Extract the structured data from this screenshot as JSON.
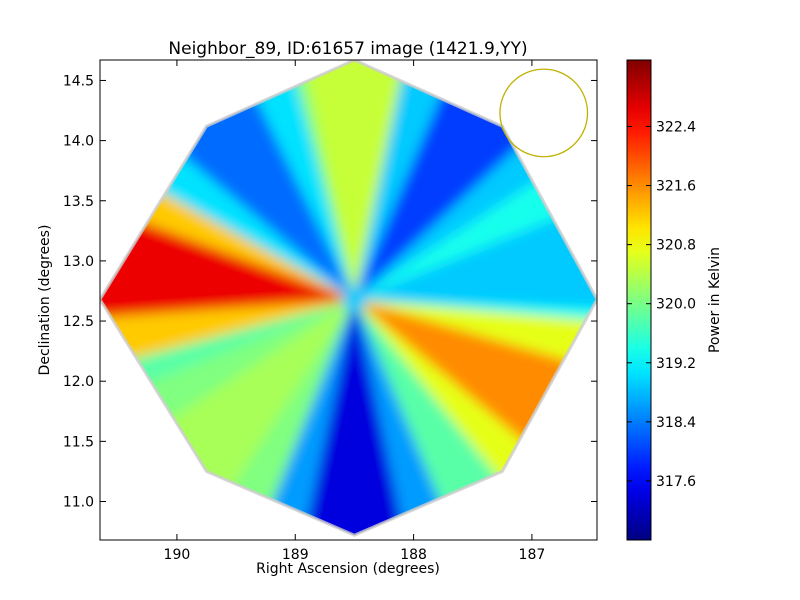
{
  "chart_data": {
    "type": "heatmap",
    "title": "Neighbor_89, ID:61657 image (1421.9,YY)",
    "xlabel": "Right Ascension (degrees)",
    "ylabel": "Declination (degrees)",
    "xlim": [
      190.65,
      186.45
    ],
    "ylim": [
      10.68,
      14.67
    ],
    "x_ticks": [
      "190",
      "189",
      "188",
      "187"
    ],
    "x_tick_values": [
      190,
      189,
      188,
      187
    ],
    "y_ticks": [
      "11.0",
      "11.5",
      "12.0",
      "12.5",
      "13.0",
      "13.5",
      "14.0",
      "14.5"
    ],
    "y_tick_values": [
      11.0,
      11.5,
      12.0,
      12.5,
      13.0,
      13.5,
      14.0,
      14.5
    ],
    "colorbar": {
      "label": "Power in Kelvin",
      "range": [
        316.8,
        323.3
      ],
      "ticks": [
        "317.6",
        "318.4",
        "319.2",
        "320.0",
        "320.8",
        "321.6",
        "322.4"
      ],
      "tick_values": [
        317.6,
        318.4,
        319.2,
        320.0,
        320.8,
        321.6,
        322.4
      ],
      "colormap": "jet"
    },
    "center": {
      "ra": 188.5,
      "dec": 12.68
    },
    "footprint_octagon": [
      [
        188.5,
        14.67
      ],
      [
        187.25,
        14.12
      ],
      [
        186.45,
        12.68
      ],
      [
        187.25,
        11.25
      ],
      [
        188.5,
        10.72
      ],
      [
        189.75,
        11.25
      ],
      [
        190.65,
        12.68
      ],
      [
        189.75,
        14.12
      ]
    ],
    "beam_circle": {
      "ra": 186.9,
      "dec": 14.23,
      "radius_deg": 0.37,
      "color": "#bfb200"
    },
    "lobes": [
      {
        "direction_deg": 90,
        "value": 320.5,
        "label": "north"
      },
      {
        "direction_deg": 55,
        "value": 318.0,
        "label": "north-east"
      },
      {
        "direction_deg": 10,
        "value": 318.9,
        "label": "east"
      },
      {
        "direction_deg": -28,
        "value": 321.6,
        "label": "south-east"
      },
      {
        "direction_deg": -90,
        "value": 317.4,
        "label": "south"
      },
      {
        "direction_deg": -135,
        "value": 320.3,
        "label": "south-west"
      },
      {
        "direction_deg": 172,
        "value": 322.6,
        "label": "west"
      },
      {
        "direction_deg": 128,
        "value": 318.3,
        "label": "north-west"
      }
    ],
    "background_value": 319.8,
    "grid": false
  }
}
